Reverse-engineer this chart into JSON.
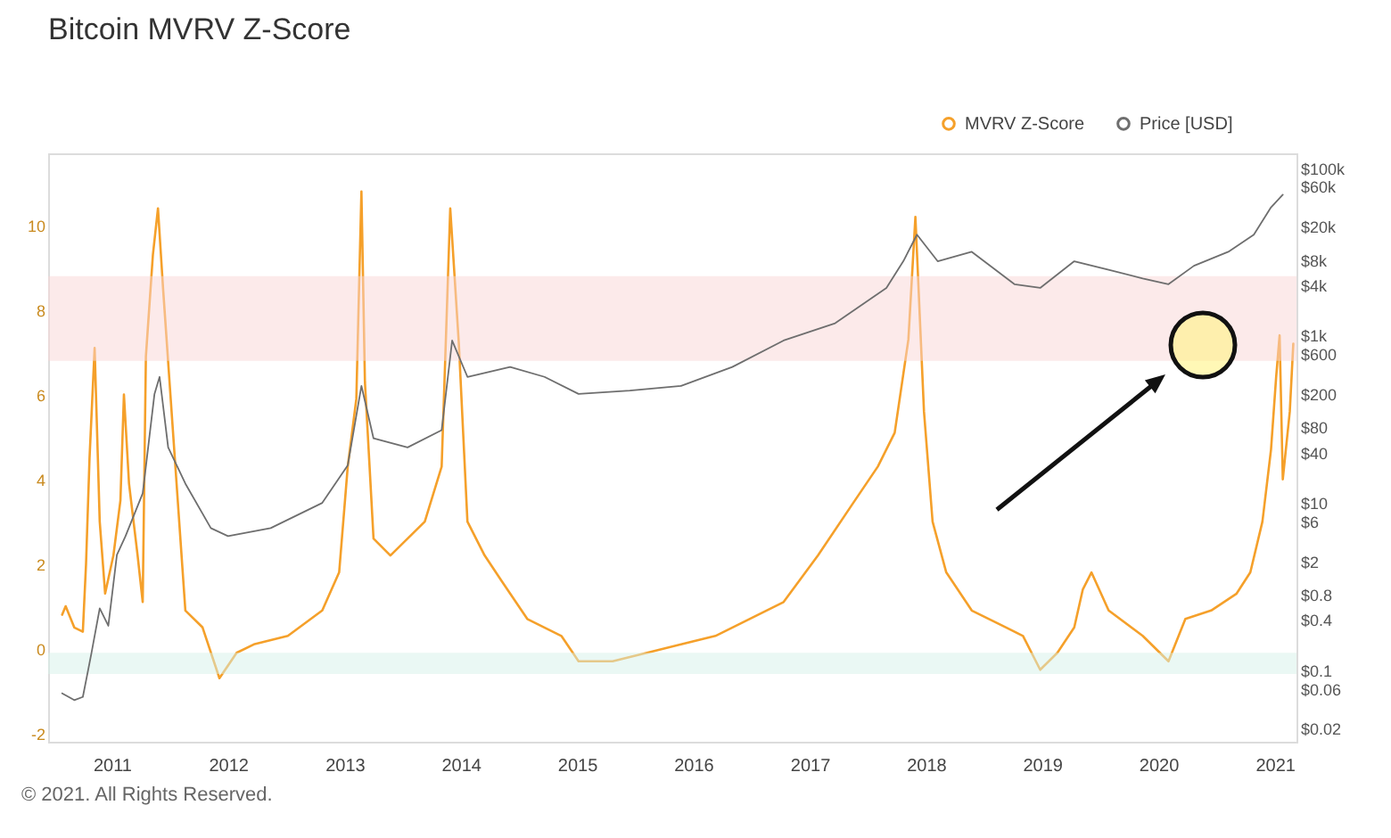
{
  "chart_data": {
    "type": "line",
    "title": "Bitcoin MVRV Z-Score",
    "xlim": [
      "2010-06-15",
      "2021-03-10"
    ],
    "xticks": [
      "2011",
      "2012",
      "2013",
      "2014",
      "2015",
      "2016",
      "2017",
      "2018",
      "2019",
      "2020",
      "2021"
    ],
    "ylim": [
      -2.2,
      11.7
    ],
    "yticks": [
      -2,
      0,
      2,
      4,
      6,
      8,
      10
    ],
    "y2lim": [
      0.014,
      150000
    ],
    "y2ticks": [
      {
        "value": 100000,
        "label": "$100k"
      },
      {
        "value": 60000,
        "label": "$60k"
      },
      {
        "value": 20000,
        "label": "$20k"
      },
      {
        "value": 8000,
        "label": "$8k"
      },
      {
        "value": 4000,
        "label": "$4k"
      },
      {
        "value": 1000,
        "label": "$1k"
      },
      {
        "value": 600,
        "label": "$600"
      },
      {
        "value": 200,
        "label": "$200"
      },
      {
        "value": 80,
        "label": "$80"
      },
      {
        "value": 40,
        "label": "$40"
      },
      {
        "value": 10,
        "label": "$10"
      },
      {
        "value": 6,
        "label": "$6"
      },
      {
        "value": 2,
        "label": "$2"
      },
      {
        "value": 0.8,
        "label": "$0.8"
      },
      {
        "value": 0.4,
        "label": "$0.4"
      },
      {
        "value": 0.1,
        "label": "$0.1"
      },
      {
        "value": 0.06,
        "label": "$0.06"
      },
      {
        "value": 0.02,
        "label": "$0.02"
      }
    ],
    "log": "y2",
    "legend": "top right",
    "series": [
      {
        "name": "MVRV Z-Score",
        "color": "#f5a02a",
        "x": [
          "2010-07-29",
          "2010-08-09",
          "2010-09-05",
          "2010-10-02",
          "2010-10-12",
          "2010-10-23",
          "2010-11-08",
          "2010-11-24",
          "2010-12-11",
          "2011-01-06",
          "2011-01-28",
          "2011-02-08",
          "2011-02-24",
          "2011-03-23",
          "2011-04-08",
          "2011-04-18",
          "2011-05-10",
          "2011-05-26",
          "2011-06-11",
          "2011-08-20",
          "2011-10-13",
          "2011-12-05",
          "2012-01-28",
          "2012-03-22",
          "2012-07-07",
          "2012-10-23",
          "2012-12-15",
          "2013-01-11",
          "2013-02-07",
          "2013-02-23",
          "2013-03-06",
          "2013-04-02",
          "2013-05-25",
          "2013-07-18",
          "2013-09-10",
          "2013-11-02",
          "2013-11-29",
          "2013-12-26",
          "2014-01-22",
          "2014-03-17",
          "2014-05-09",
          "2014-07-29",
          "2014-11-13",
          "2015-01-06",
          "2015-04-23",
          "2015-08-09",
          "2015-11-24",
          "2016-03-11",
          "2016-06-26",
          "2016-10-11",
          "2017-01-27",
          "2017-05-14",
          "2017-08-03",
          "2017-09-25",
          "2017-11-07",
          "2017-11-29",
          "2017-12-26",
          "2018-01-22",
          "2018-03-06",
          "2018-05-25",
          "2018-09-10",
          "2018-11-02",
          "2018-12-26",
          "2019-02-18",
          "2019-04-12",
          "2019-05-09",
          "2019-06-05",
          "2019-07-29",
          "2019-11-13",
          "2020-02-02",
          "2020-03-26",
          "2020-06-15",
          "2020-09-03",
          "2020-10-16",
          "2020-11-23",
          "2020-12-20",
          "2021-01-05",
          "2021-01-16",
          "2021-01-26",
          "2021-02-17",
          "2021-02-28"
        ],
        "values": [
          0.8,
          1.0,
          0.5,
          0.4,
          2.0,
          4.5,
          7.1,
          3.0,
          1.3,
          2.2,
          3.5,
          6.0,
          3.9,
          2.2,
          1.1,
          6.9,
          9.3,
          10.4,
          8.5,
          0.9,
          0.5,
          -0.7,
          -0.1,
          0.1,
          0.3,
          0.9,
          1.8,
          4.3,
          5.9,
          10.8,
          6.3,
          2.6,
          2.2,
          2.6,
          3.0,
          4.3,
          10.4,
          7.2,
          3.0,
          2.2,
          1.6,
          0.7,
          0.3,
          -0.3,
          -0.3,
          -0.1,
          0.1,
          0.3,
          0.7,
          1.1,
          2.2,
          3.4,
          4.3,
          5.1,
          7.3,
          10.2,
          5.6,
          3.0,
          1.8,
          0.9,
          0.5,
          0.3,
          -0.5,
          -0.1,
          0.5,
          1.4,
          1.8,
          0.9,
          0.3,
          -0.3,
          0.7,
          0.9,
          1.3,
          1.8,
          3.0,
          4.7,
          6.4,
          7.4,
          4.0,
          5.6,
          7.2
        ]
      },
      {
        "name": "Price [USD]",
        "color": "#6e6e6e",
        "axis": "y2",
        "x": [
          "2010-07-29",
          "2010-09-05",
          "2010-10-02",
          "2010-10-29",
          "2010-11-24",
          "2010-12-21",
          "2011-01-17",
          "2011-02-13",
          "2011-04-08",
          "2011-05-15",
          "2011-05-31",
          "2011-06-27",
          "2011-08-20",
          "2011-11-08",
          "2012-01-01",
          "2012-05-14",
          "2012-10-23",
          "2013-01-11",
          "2013-02-23",
          "2013-04-02",
          "2013-07-18",
          "2013-11-02",
          "2013-12-05",
          "2014-01-22",
          "2014-06-05",
          "2014-09-21",
          "2015-01-06",
          "2015-06-16",
          "2015-11-24",
          "2016-05-03",
          "2016-10-11",
          "2017-03-22",
          "2017-08-30",
          "2017-10-22",
          "2017-12-04",
          "2018-02-07",
          "2018-05-25",
          "2018-10-06",
          "2018-12-26",
          "2019-04-12",
          "2019-07-29",
          "2019-11-13",
          "2020-02-02",
          "2020-04-22",
          "2020-08-08",
          "2020-10-27",
          "2020-12-20",
          "2021-01-26"
        ],
        "values": [
          0.053,
          0.044,
          0.048,
          0.16,
          0.55,
          0.34,
          2.4,
          4,
          13,
          200,
          320,
          46,
          17,
          5,
          4,
          5,
          10,
          28,
          250,
          59,
          46,
          74,
          870,
          320,
          420,
          320,
          200,
          220,
          250,
          420,
          870,
          1400,
          3700,
          7700,
          16000,
          7700,
          10000,
          4100,
          3700,
          7700,
          6100,
          4800,
          4100,
          6800,
          10000,
          16000,
          34000,
          48000
        ]
      }
    ],
    "bands": [
      {
        "axis": "y",
        "from": 6.8,
        "to": 8.8,
        "color": "#f9d6d6"
      },
      {
        "axis": "y",
        "from": -0.6,
        "to": -0.1,
        "color": "#d6f2ea"
      }
    ],
    "annotations": [
      "© 2021. All Rights Reserved."
    ]
  }
}
